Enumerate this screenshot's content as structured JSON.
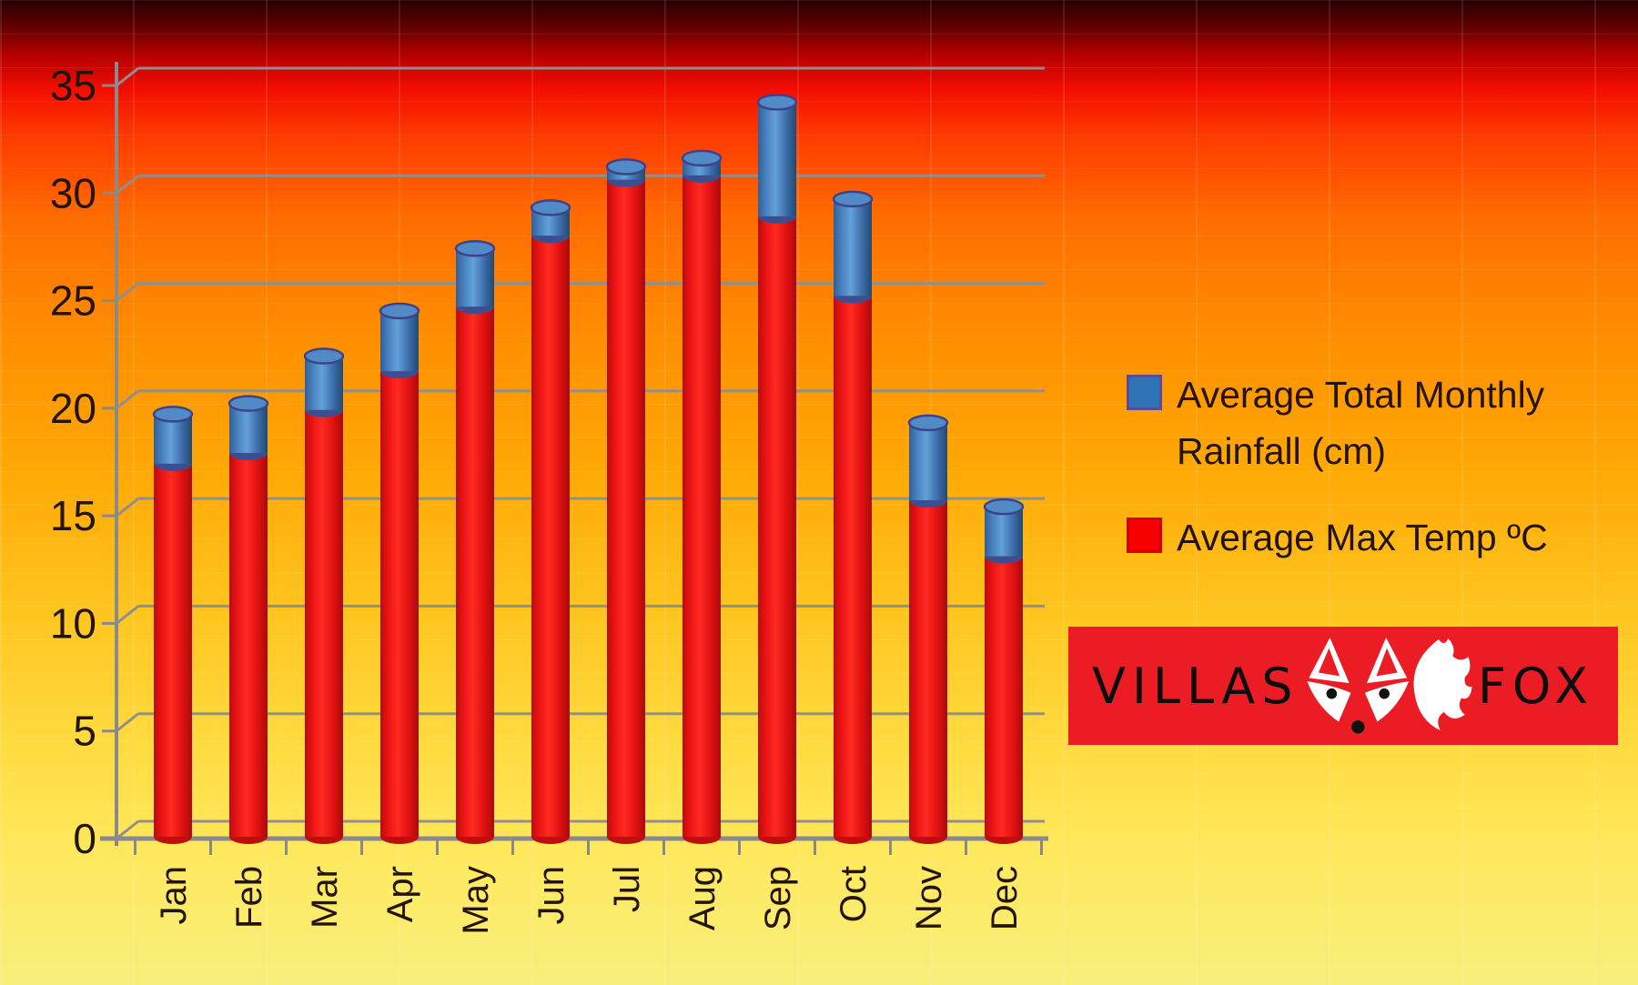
{
  "chart_data": {
    "type": "bar",
    "subtype": "3d-cylinder-stacked",
    "title": "",
    "xlabel": "",
    "ylabel": "",
    "categories": [
      "Jan",
      "Feb",
      "Mar",
      "Apr",
      "May",
      "Jun",
      "Jul",
      "Aug",
      "Sep",
      "Oct",
      "Nov",
      "Dec"
    ],
    "series": [
      {
        "name": "Average Max Temp ºC",
        "color": "#EE1111",
        "values": [
          17.0,
          17.5,
          19.5,
          21.3,
          24.3,
          27.6,
          30.2,
          30.4,
          28.5,
          24.8,
          15.3,
          12.7
        ]
      },
      {
        "name": "Average Total Monthly Rainfall (cm)",
        "color": "#3A76B8",
        "values": [
          2.3,
          2.3,
          2.5,
          2.8,
          2.7,
          1.3,
          0.6,
          0.8,
          5.3,
          4.5,
          3.6,
          2.3
        ]
      }
    ],
    "stacked": true,
    "ylim": [
      0,
      35
    ],
    "ytick_step": 5,
    "yticks": [
      "0",
      "5",
      "10",
      "15",
      "20",
      "25",
      "30",
      "35"
    ],
    "grid": true,
    "legend_position": "right"
  },
  "legend": {
    "rainfall_label": "Average Total Monthly Rainfall (cm)",
    "temp_label": "Average Max Temp ºC"
  },
  "logo": {
    "word_left": "VILLAS",
    "word_right": "FOX",
    "fox_icon": "fox-face-and-tail-icon",
    "background_color": "#EC1C24"
  },
  "colors": {
    "axis": "#8a8a8a",
    "gridline": "#8f8f8f",
    "label_text": "#241403",
    "bar_red": "#EE1111",
    "bar_blue": "#3A76B8",
    "background_top": "#250000",
    "background_mid": "#ff8e00",
    "background_bottom": "#f7ef7c"
  }
}
